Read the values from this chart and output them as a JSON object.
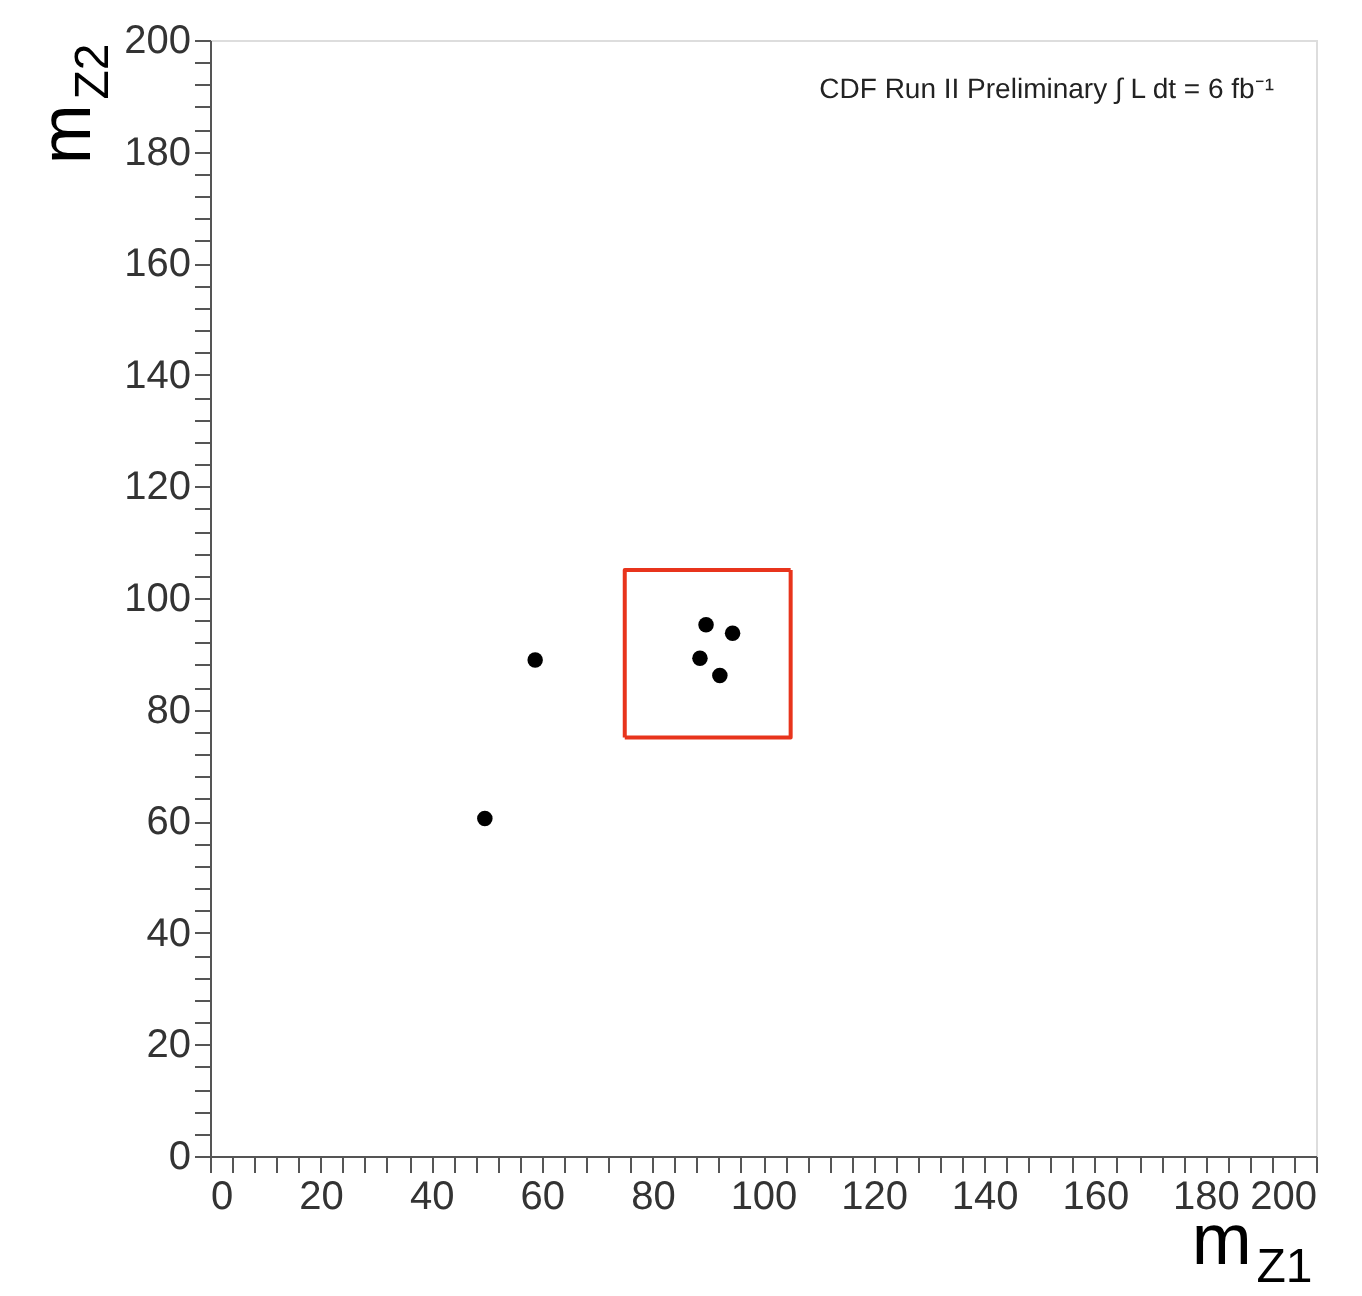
{
  "chart_data": {
    "type": "scatter",
    "xlabel": "m$_{Z1}$",
    "ylabel": "m$_{Z2}$",
    "annotations": [
      "CDF Run II Preliminary ∫ L dt = 6 fb⁻¹"
    ],
    "xlim": [
      0,
      200
    ],
    "ylim": [
      0,
      200
    ],
    "xticks": [
      0,
      {
        "value": 4,
        "label": null
      },
      {
        "value": 8,
        "label": null
      },
      {
        "value": 12,
        "label": null
      },
      {
        "value": 16,
        "label": null
      },
      20,
      {
        "value": 24,
        "label": null
      },
      {
        "value": 28,
        "label": null
      },
      {
        "value": 32,
        "label": null
      },
      {
        "value": 36,
        "label": null
      },
      40,
      {
        "value": 44,
        "label": null
      },
      {
        "value": 48,
        "label": null
      },
      {
        "value": 52,
        "label": null
      },
      {
        "value": 56,
        "label": null
      },
      60,
      {
        "value": 64,
        "label": null
      },
      {
        "value": 68,
        "label": null
      },
      {
        "value": 72,
        "label": null
      },
      {
        "value": 76,
        "label": null
      },
      80,
      {
        "value": 84,
        "label": null
      },
      {
        "value": 88,
        "label": null
      },
      {
        "value": 92,
        "label": null
      },
      {
        "value": 96,
        "label": null
      },
      100,
      {
        "value": 104,
        "label": null
      },
      {
        "value": 108,
        "label": null
      },
      {
        "value": 112,
        "label": null
      },
      {
        "value": 116,
        "label": null
      },
      120,
      {
        "value": 124,
        "label": null
      },
      {
        "value": 128,
        "label": null
      },
      {
        "value": 132,
        "label": null
      },
      {
        "value": 136,
        "label": null
      },
      140,
      {
        "value": 144,
        "label": null
      },
      {
        "value": 148,
        "label": null
      },
      {
        "value": 152,
        "label": null
      },
      {
        "value": 156,
        "label": null
      },
      160,
      {
        "value": 164,
        "label": null
      },
      {
        "value": 168,
        "label": null
      },
      {
        "value": 172,
        "label": null
      },
      {
        "value": 176,
        "label": null
      },
      180,
      {
        "value": 184,
        "label": null
      },
      {
        "value": 188,
        "label": null
      },
      {
        "value": 192,
        "label": null
      },
      {
        "value": 196,
        "label": null
      },
      200
    ],
    "yticks": [
      0,
      {
        "value": 4,
        "label": null
      },
      {
        "value": 8,
        "label": null
      },
      {
        "value": 12,
        "label": null
      },
      {
        "value": 16,
        "label": null
      },
      20,
      {
        "value": 24,
        "label": null
      },
      {
        "value": 28,
        "label": null
      },
      {
        "value": 32,
        "label": null
      },
      {
        "value": 36,
        "label": null
      },
      40,
      {
        "value": 44,
        "label": null
      },
      {
        "value": 48,
        "label": null
      },
      {
        "value": 52,
        "label": null
      },
      {
        "value": 56,
        "label": null
      },
      60,
      {
        "value": 64,
        "label": null
      },
      {
        "value": 68,
        "label": null
      },
      {
        "value": 72,
        "label": null
      },
      {
        "value": 76,
        "label": null
      },
      80,
      {
        "value": 84,
        "label": null
      },
      {
        "value": 88,
        "label": null
      },
      {
        "value": 92,
        "label": null
      },
      {
        "value": 96,
        "label": null
      },
      100,
      {
        "value": 104,
        "label": null
      },
      {
        "value": 108,
        "label": null
      },
      {
        "value": 112,
        "label": null
      },
      {
        "value": 116,
        "label": null
      },
      120,
      {
        "value": 124,
        "label": null
      },
      {
        "value": 128,
        "label": null
      },
      {
        "value": 132,
        "label": null
      },
      {
        "value": 136,
        "label": null
      },
      140,
      {
        "value": 144,
        "label": null
      },
      {
        "value": 148,
        "label": null
      },
      {
        "value": 152,
        "label": null
      },
      {
        "value": 156,
        "label": null
      },
      160,
      {
        "value": 164,
        "label": null
      },
      {
        "value": 168,
        "label": null
      },
      {
        "value": 172,
        "label": null
      },
      {
        "value": 176,
        "label": null
      },
      180,
      {
        "value": 184,
        "label": null
      },
      {
        "value": 188,
        "label": null
      },
      {
        "value": 192,
        "label": null
      },
      {
        "value": 196,
        "label": null
      },
      200
    ],
    "grid": false,
    "marker": "circle",
    "series": [
      {
        "color": "#000000",
        "x": [
          49.7,
          58.8,
          89.7,
          94.5,
          88.6,
          92.2
        ],
        "values": [
          60.5,
          88.9,
          95.2,
          93.7,
          89.2,
          86.1
        ]
      },
      {
        "type": "line",
        "color": "#e8341c",
        "line_style": "solid",
        "marker": "none",
        "x": [
          75,
          105,
          105
        ],
        "values": [
          75,
          75,
          105
        ]
      },
      {
        "type": "line",
        "color": "#e8341c",
        "line_style": "solid",
        "marker": "none",
        "x": [
          75,
          75,
          105
        ],
        "values": [
          75,
          105,
          105
        ]
      }
    ]
  }
}
